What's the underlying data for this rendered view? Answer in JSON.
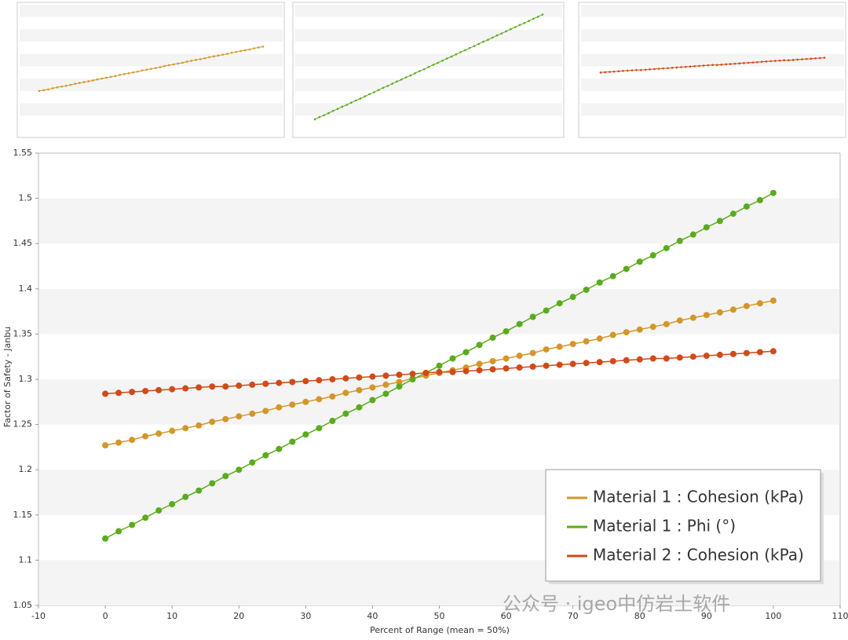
{
  "chart_data": {
    "type": "line",
    "xlabel": "Percent of Range (mean = 50%)",
    "ylabel": "Factor of Safety - Janbu",
    "watermark": "公众号 · igeo中仿岩土软件",
    "xlim": [
      -10,
      110
    ],
    "xticks": [
      -10,
      0,
      10,
      20,
      30,
      40,
      50,
      60,
      70,
      80,
      90,
      100,
      110
    ],
    "ylim": [
      1.05,
      1.55
    ],
    "yticks": [
      1.05,
      1.1,
      1.15,
      1.2,
      1.25,
      1.3,
      1.35,
      1.4,
      1.45,
      1.5,
      1.55
    ],
    "grid": "bands",
    "legend": "bottom-right",
    "x": [
      0,
      2,
      4,
      6,
      8,
      10,
      12,
      14,
      16,
      18,
      20,
      22,
      24,
      26,
      28,
      30,
      32,
      34,
      36,
      38,
      40,
      42,
      44,
      46,
      48,
      50,
      52,
      54,
      56,
      58,
      60,
      62,
      64,
      66,
      68,
      70,
      72,
      74,
      76,
      78,
      80,
      82,
      84,
      86,
      88,
      90,
      92,
      94,
      96,
      98,
      100
    ],
    "series": [
      {
        "name": "Material 1 : Cohesion (kPa)",
        "color": "#d4962a",
        "values": [
          1.227,
          1.23,
          1.233,
          1.237,
          1.24,
          1.243,
          1.246,
          1.249,
          1.253,
          1.256,
          1.259,
          1.262,
          1.265,
          1.269,
          1.272,
          1.275,
          1.278,
          1.281,
          1.285,
          1.288,
          1.291,
          1.294,
          1.297,
          1.301,
          1.304,
          1.307,
          1.31,
          1.313,
          1.317,
          1.32,
          1.323,
          1.326,
          1.329,
          1.333,
          1.336,
          1.339,
          1.342,
          1.345,
          1.349,
          1.352,
          1.355,
          1.358,
          1.361,
          1.365,
          1.368,
          1.371,
          1.374,
          1.377,
          1.381,
          1.384,
          1.387
        ]
      },
      {
        "name": "Material 1 : Phi (°)",
        "color": "#5aab1e",
        "values": [
          1.124,
          1.132,
          1.139,
          1.147,
          1.155,
          1.162,
          1.17,
          1.177,
          1.185,
          1.193,
          1.2,
          1.208,
          1.216,
          1.223,
          1.231,
          1.239,
          1.246,
          1.254,
          1.262,
          1.269,
          1.277,
          1.284,
          1.292,
          1.3,
          1.307,
          1.315,
          1.323,
          1.33,
          1.338,
          1.346,
          1.353,
          1.361,
          1.369,
          1.376,
          1.384,
          1.391,
          1.399,
          1.407,
          1.414,
          1.422,
          1.43,
          1.437,
          1.445,
          1.453,
          1.46,
          1.468,
          1.475,
          1.483,
          1.491,
          1.498,
          1.506
        ]
      },
      {
        "name": "Material 2 : Cohesion (kPa)",
        "color": "#d04a1a",
        "values": [
          1.284,
          1.285,
          1.286,
          1.287,
          1.288,
          1.289,
          1.29,
          1.291,
          1.292,
          1.292,
          1.293,
          1.294,
          1.295,
          1.296,
          1.297,
          1.298,
          1.299,
          1.3,
          1.301,
          1.302,
          1.303,
          1.304,
          1.305,
          1.306,
          1.307,
          1.308,
          1.308,
          1.309,
          1.31,
          1.311,
          1.312,
          1.313,
          1.314,
          1.315,
          1.316,
          1.317,
          1.318,
          1.319,
          1.32,
          1.321,
          1.322,
          1.323,
          1.323,
          1.324,
          1.325,
          1.326,
          1.327,
          1.328,
          1.329,
          1.33,
          1.331
        ]
      }
    ]
  }
}
